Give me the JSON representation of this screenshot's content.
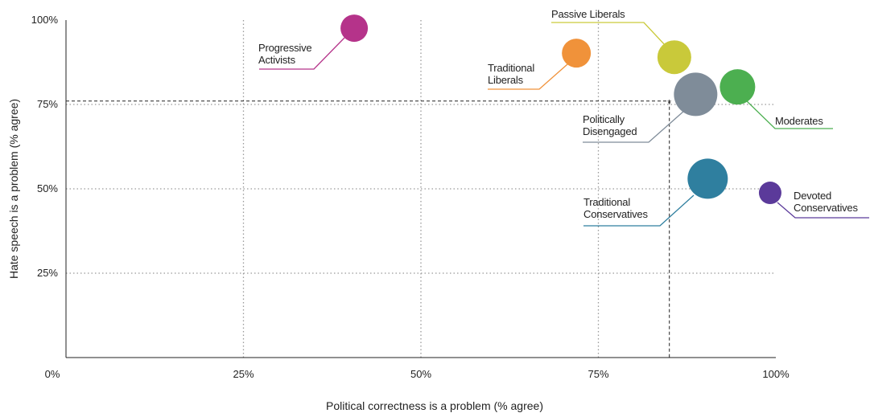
{
  "chart_data": {
    "type": "scatter",
    "xlabel": "Political correctness is a problem (% agree)",
    "ylabel": "Hate speech is a problem (% agree)",
    "xlim": [
      0,
      100
    ],
    "ylim": [
      0,
      100
    ],
    "xticks": [
      {
        "value": 0,
        "label": "0%"
      },
      {
        "value": 25,
        "label": "25%"
      },
      {
        "value": 50,
        "label": "50%"
      },
      {
        "value": 75,
        "label": "75%"
      },
      {
        "value": 100,
        "label": "100%"
      }
    ],
    "yticks": [
      {
        "value": 25,
        "label": "25%"
      },
      {
        "value": 50,
        "label": "50%"
      },
      {
        "value": 75,
        "label": "75%"
      },
      {
        "value": 100,
        "label": "100%"
      }
    ],
    "grid": true,
    "reference": {
      "x": 85,
      "y": 76,
      "label": "*"
    },
    "series": [
      {
        "name": "Progressive Activists",
        "color": "#b5338a",
        "x": [
          40.6
        ],
        "values": [
          97.6
        ],
        "sizes": [
          17
        ]
      },
      {
        "name": "Traditional Liberals",
        "color": "#f0923a",
        "x": [
          71.9
        ],
        "values": [
          90.2
        ],
        "sizes": [
          18
        ]
      },
      {
        "name": "Passive Liberals",
        "color": "#c9c93a",
        "x": [
          85.7
        ],
        "values": [
          89
        ],
        "sizes": [
          21
        ]
      },
      {
        "name": "Moderates",
        "color": "#4caf50",
        "x": [
          94.6
        ],
        "values": [
          80.2
        ],
        "sizes": [
          22
        ]
      },
      {
        "name": "Politically Disengaged",
        "color": "#7f8c99",
        "x": [
          88.7
        ],
        "values": [
          78
        ],
        "sizes": [
          27
        ]
      },
      {
        "name": "Traditional Conservatives",
        "color": "#2f7f9f",
        "x": [
          90.4
        ],
        "values": [
          53
        ],
        "sizes": [
          25
        ]
      },
      {
        "name": "Devoted Conservatives",
        "color": "#5b3a9a",
        "x": [
          99.2
        ],
        "values": [
          48.8
        ],
        "sizes": [
          14
        ]
      }
    ]
  }
}
